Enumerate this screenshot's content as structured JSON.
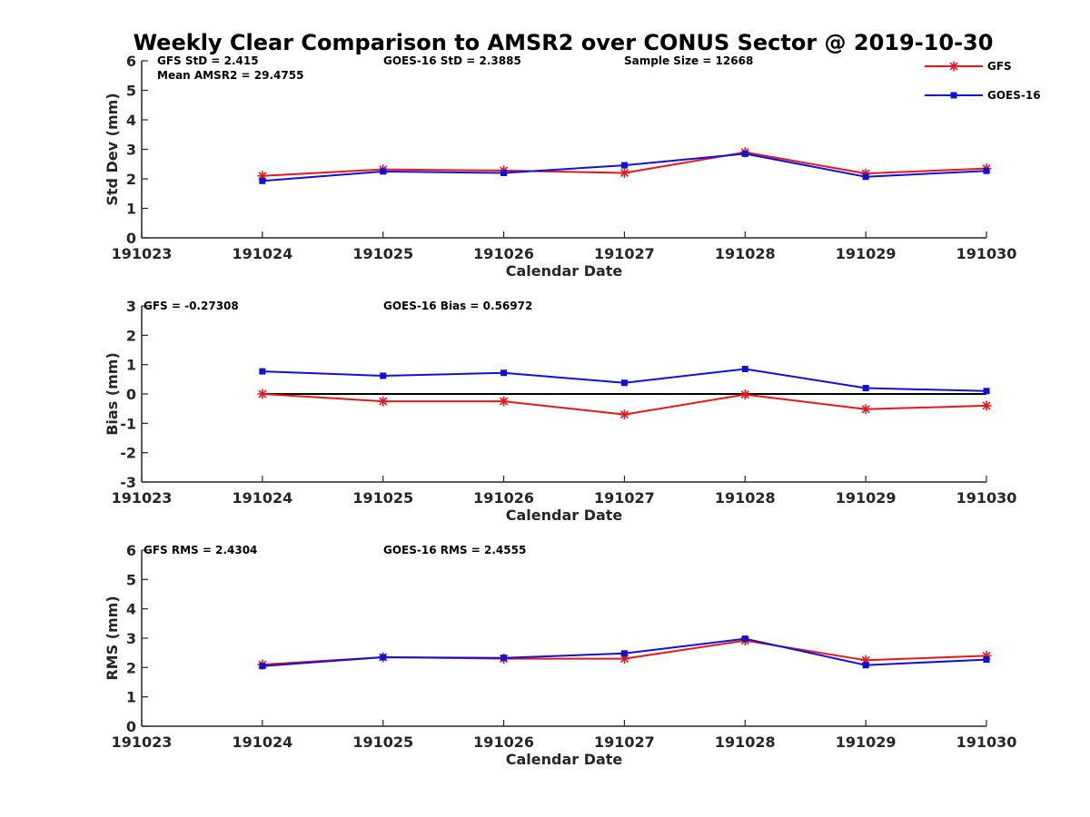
{
  "title": "Weekly Clear Comparison to AMSR2 over CONUS Sector @ 2019-10-30",
  "colors": {
    "gfs": "#e8161b",
    "goes": "#1010d6",
    "zero": "#000000",
    "axis": "#262626"
  },
  "legend": {
    "position": "top-right",
    "gfs": "GFS",
    "goes": "GOES-16"
  },
  "chart_data": [
    {
      "type": "line",
      "xlabel": "Calendar Date",
      "ylabel": "Std Dev (mm)",
      "ylim": [
        0,
        6
      ],
      "yticks": [
        "0",
        "1",
        "2",
        "3",
        "4",
        "5",
        "6"
      ],
      "categories": [
        "191023",
        "191024",
        "191025",
        "191026",
        "191027",
        "191028",
        "191029",
        "191030"
      ],
      "grid": false,
      "annotations": [
        "GFS StD = 2.415",
        "GOES-16 StD = 2.3885",
        "Sample Size = 12668",
        "Mean AMSR2 = 29.4755"
      ],
      "series": [
        {
          "name": "GFS",
          "x": [
            "191024",
            "191025",
            "191026",
            "191027",
            "191028",
            "191029",
            "191030"
          ],
          "values": [
            2.1,
            2.32,
            2.28,
            2.2,
            2.9,
            2.18,
            2.35
          ]
        },
        {
          "name": "GOES-16",
          "x": [
            "191024",
            "191025",
            "191026",
            "191027",
            "191028",
            "191029",
            "191030"
          ],
          "values": [
            1.93,
            2.25,
            2.2,
            2.46,
            2.85,
            2.07,
            2.27
          ]
        }
      ]
    },
    {
      "type": "line",
      "xlabel": "Calendar Date",
      "ylabel": "Bias (mm)",
      "ylim": [
        -3,
        3
      ],
      "yticks": [
        "-3",
        "-2",
        "-1",
        "0",
        "1",
        "2",
        "3"
      ],
      "categories": [
        "191023",
        "191024",
        "191025",
        "191026",
        "191027",
        "191028",
        "191029",
        "191030"
      ],
      "grid": false,
      "zero_line": true,
      "annotations": [
        "GFS = -0.27308",
        "GOES-16 Bias  = 0.56972"
      ],
      "series": [
        {
          "name": "GFS",
          "x": [
            "191024",
            "191025",
            "191026",
            "191027",
            "191028",
            "191029",
            "191030"
          ],
          "values": [
            0.0,
            -0.25,
            -0.25,
            -0.7,
            -0.02,
            -0.52,
            -0.4
          ]
        },
        {
          "name": "GOES-16",
          "x": [
            "191024",
            "191025",
            "191026",
            "191027",
            "191028",
            "191029",
            "191030"
          ],
          "values": [
            0.77,
            0.62,
            0.72,
            0.38,
            0.85,
            0.2,
            0.1
          ]
        }
      ]
    },
    {
      "type": "line",
      "xlabel": "Calendar Date",
      "ylabel": "RMS (mm)",
      "ylim": [
        0,
        6
      ],
      "yticks": [
        "0",
        "1",
        "2",
        "3",
        "4",
        "5",
        "6"
      ],
      "categories": [
        "191023",
        "191024",
        "191025",
        "191026",
        "191027",
        "191028",
        "191029",
        "191030"
      ],
      "grid": false,
      "annotations": [
        "GFS RMS = 2.4304",
        "GOES-16 RMS = 2.4555"
      ],
      "series": [
        {
          "name": "GFS",
          "x": [
            "191024",
            "191025",
            "191026",
            "191027",
            "191028",
            "191029",
            "191030"
          ],
          "values": [
            2.1,
            2.35,
            2.3,
            2.3,
            2.92,
            2.25,
            2.4
          ]
        },
        {
          "name": "GOES-16",
          "x": [
            "191024",
            "191025",
            "191026",
            "191027",
            "191028",
            "191029",
            "191030"
          ],
          "values": [
            2.05,
            2.35,
            2.33,
            2.48,
            2.98,
            2.08,
            2.27
          ]
        }
      ]
    }
  ]
}
